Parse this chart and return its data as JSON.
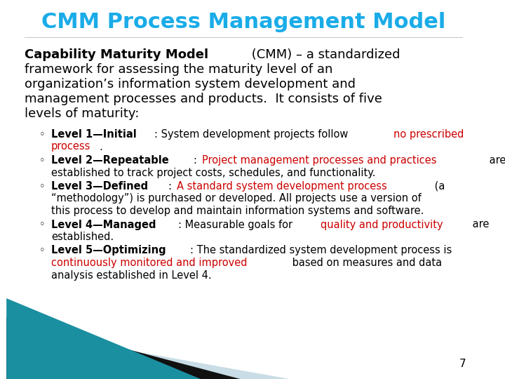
{
  "title": "CMM Process Management Model",
  "title_color": "#1AACE8",
  "title_fontsize": 22,
  "bg_color": "#FFFFFF",
  "page_number": "7",
  "teal_color": "#1A8FA0",
  "black_color": "#111111",
  "lightblue_color": "#C8DDE5",
  "intro_line1_bold": "Capability Maturity Model",
  "intro_line1_rest": " (CMM) – a standardized",
  "intro_lines": [
    "framework for assessing the maturity level of an",
    "organization’s information system development and",
    "management processes and products.  It consists of five",
    "levels of maturity:"
  ],
  "intro_fontsize": 13.0,
  "bullet_fontsize": 10.5,
  "bullet_label_fontsize": 10.5,
  "levels": [
    {
      "label": "Level 1—Initial",
      "segments": [
        {
          "text": ": System development projects follow ",
          "color": "#000000",
          "bold": false
        },
        {
          "text": "no prescribed",
          "color": "#CC0000",
          "bold": false
        },
        {
          "text": " ",
          "color": "#000000",
          "bold": false
        }
      ],
      "line2": [
        {
          "text": "process",
          "color": "#CC0000",
          "bold": false
        },
        {
          "text": ".",
          "color": "#000000",
          "bold": false
        }
      ]
    },
    {
      "label": "Level 2—Repeatable",
      "segments": [
        {
          "text": ": ",
          "color": "#000000",
          "bold": false
        },
        {
          "text": "Project management processes and practices",
          "color": "#CC0000",
          "bold": false
        },
        {
          "text": " are",
          "color": "#000000",
          "bold": false
        }
      ],
      "line2": [
        {
          "text": "established to track project costs, schedules, and functionality.",
          "color": "#000000",
          "bold": false
        }
      ]
    },
    {
      "label": "Level 3—Defined",
      "segments": [
        {
          "text": ": ",
          "color": "#000000",
          "bold": false
        },
        {
          "text": "A standard system development process",
          "color": "#CC0000",
          "bold": false
        },
        {
          "text": " (a",
          "color": "#000000",
          "bold": false
        }
      ],
      "line2": [
        {
          "text": "“methodology”) is purchased or developed. All projects use a version of",
          "color": "#000000",
          "bold": false
        }
      ],
      "line3": [
        {
          "text": "this process to develop and maintain information systems and software.",
          "color": "#000000",
          "bold": false
        }
      ]
    },
    {
      "label": "Level 4—Managed",
      "segments": [
        {
          "text": ": Measurable goals for ",
          "color": "#000000",
          "bold": false
        },
        {
          "text": "quality and productivity",
          "color": "#CC0000",
          "bold": false
        },
        {
          "text": " are",
          "color": "#000000",
          "bold": false
        }
      ],
      "line2": [
        {
          "text": "established.",
          "color": "#000000",
          "bold": false
        }
      ]
    },
    {
      "label": "Level 5—Optimizing",
      "segments": [
        {
          "text": ": The standardized system development process is",
          "color": "#000000",
          "bold": false
        }
      ],
      "line2": [
        {
          "text": "continuously monitored and improved",
          "color": "#CC0000",
          "bold": false
        },
        {
          "text": " based on measures and data",
          "color": "#000000",
          "bold": false
        }
      ],
      "line3": [
        {
          "text": "analysis established in Level 4.",
          "color": "#000000",
          "bold": false
        }
      ]
    }
  ]
}
